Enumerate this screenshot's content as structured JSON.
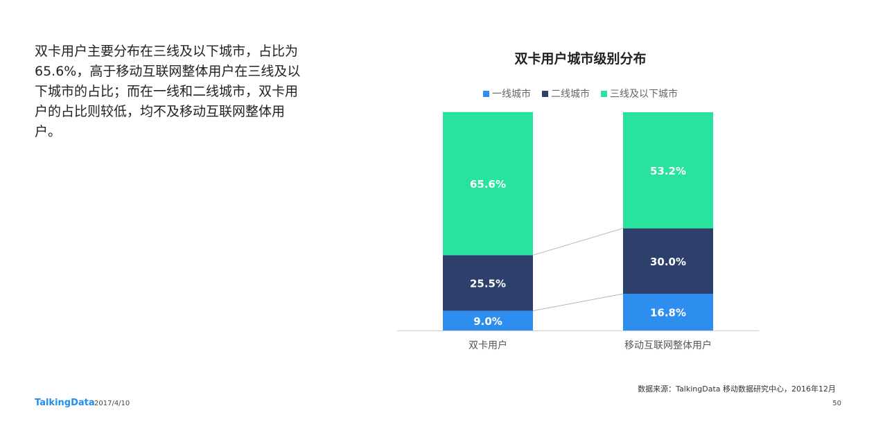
{
  "summary": "双卡用户主要分布在三线及以下城市，占比为65.6%，高于移动互联网整体用户在三线及以下城市的占比；而在一线和二线城市，双卡用户的占比则较低，均不及移动互联网整体用户。",
  "chart_data": {
    "type": "bar",
    "stacked": true,
    "title": "双卡用户城市级别分布",
    "categories": [
      "双卡用户",
      "移动互联网整体用户"
    ],
    "series": [
      {
        "name": "一线城市",
        "values": [
          9.0,
          16.8
        ],
        "labels": [
          "9.0%",
          "16.8%"
        ],
        "color": "#2e8ef0"
      },
      {
        "name": "二线城市",
        "values": [
          25.5,
          30.0
        ],
        "labels": [
          "25.5%",
          "30.0%"
        ],
        "color": "#2d3f6b"
      },
      {
        "name": "三线及以下城市",
        "values": [
          65.6,
          53.2
        ],
        "labels": [
          "65.6%",
          "53.2%"
        ],
        "color": "#27e39e"
      }
    ],
    "ylim": [
      0,
      100
    ],
    "legend_position": "top-center",
    "grid": false
  },
  "source": "数据来源：TalkingData 移动数据研究中心，2016年12月",
  "footer": {
    "logo": "TalkingData",
    "date": "2017/4/10",
    "page": "50"
  }
}
